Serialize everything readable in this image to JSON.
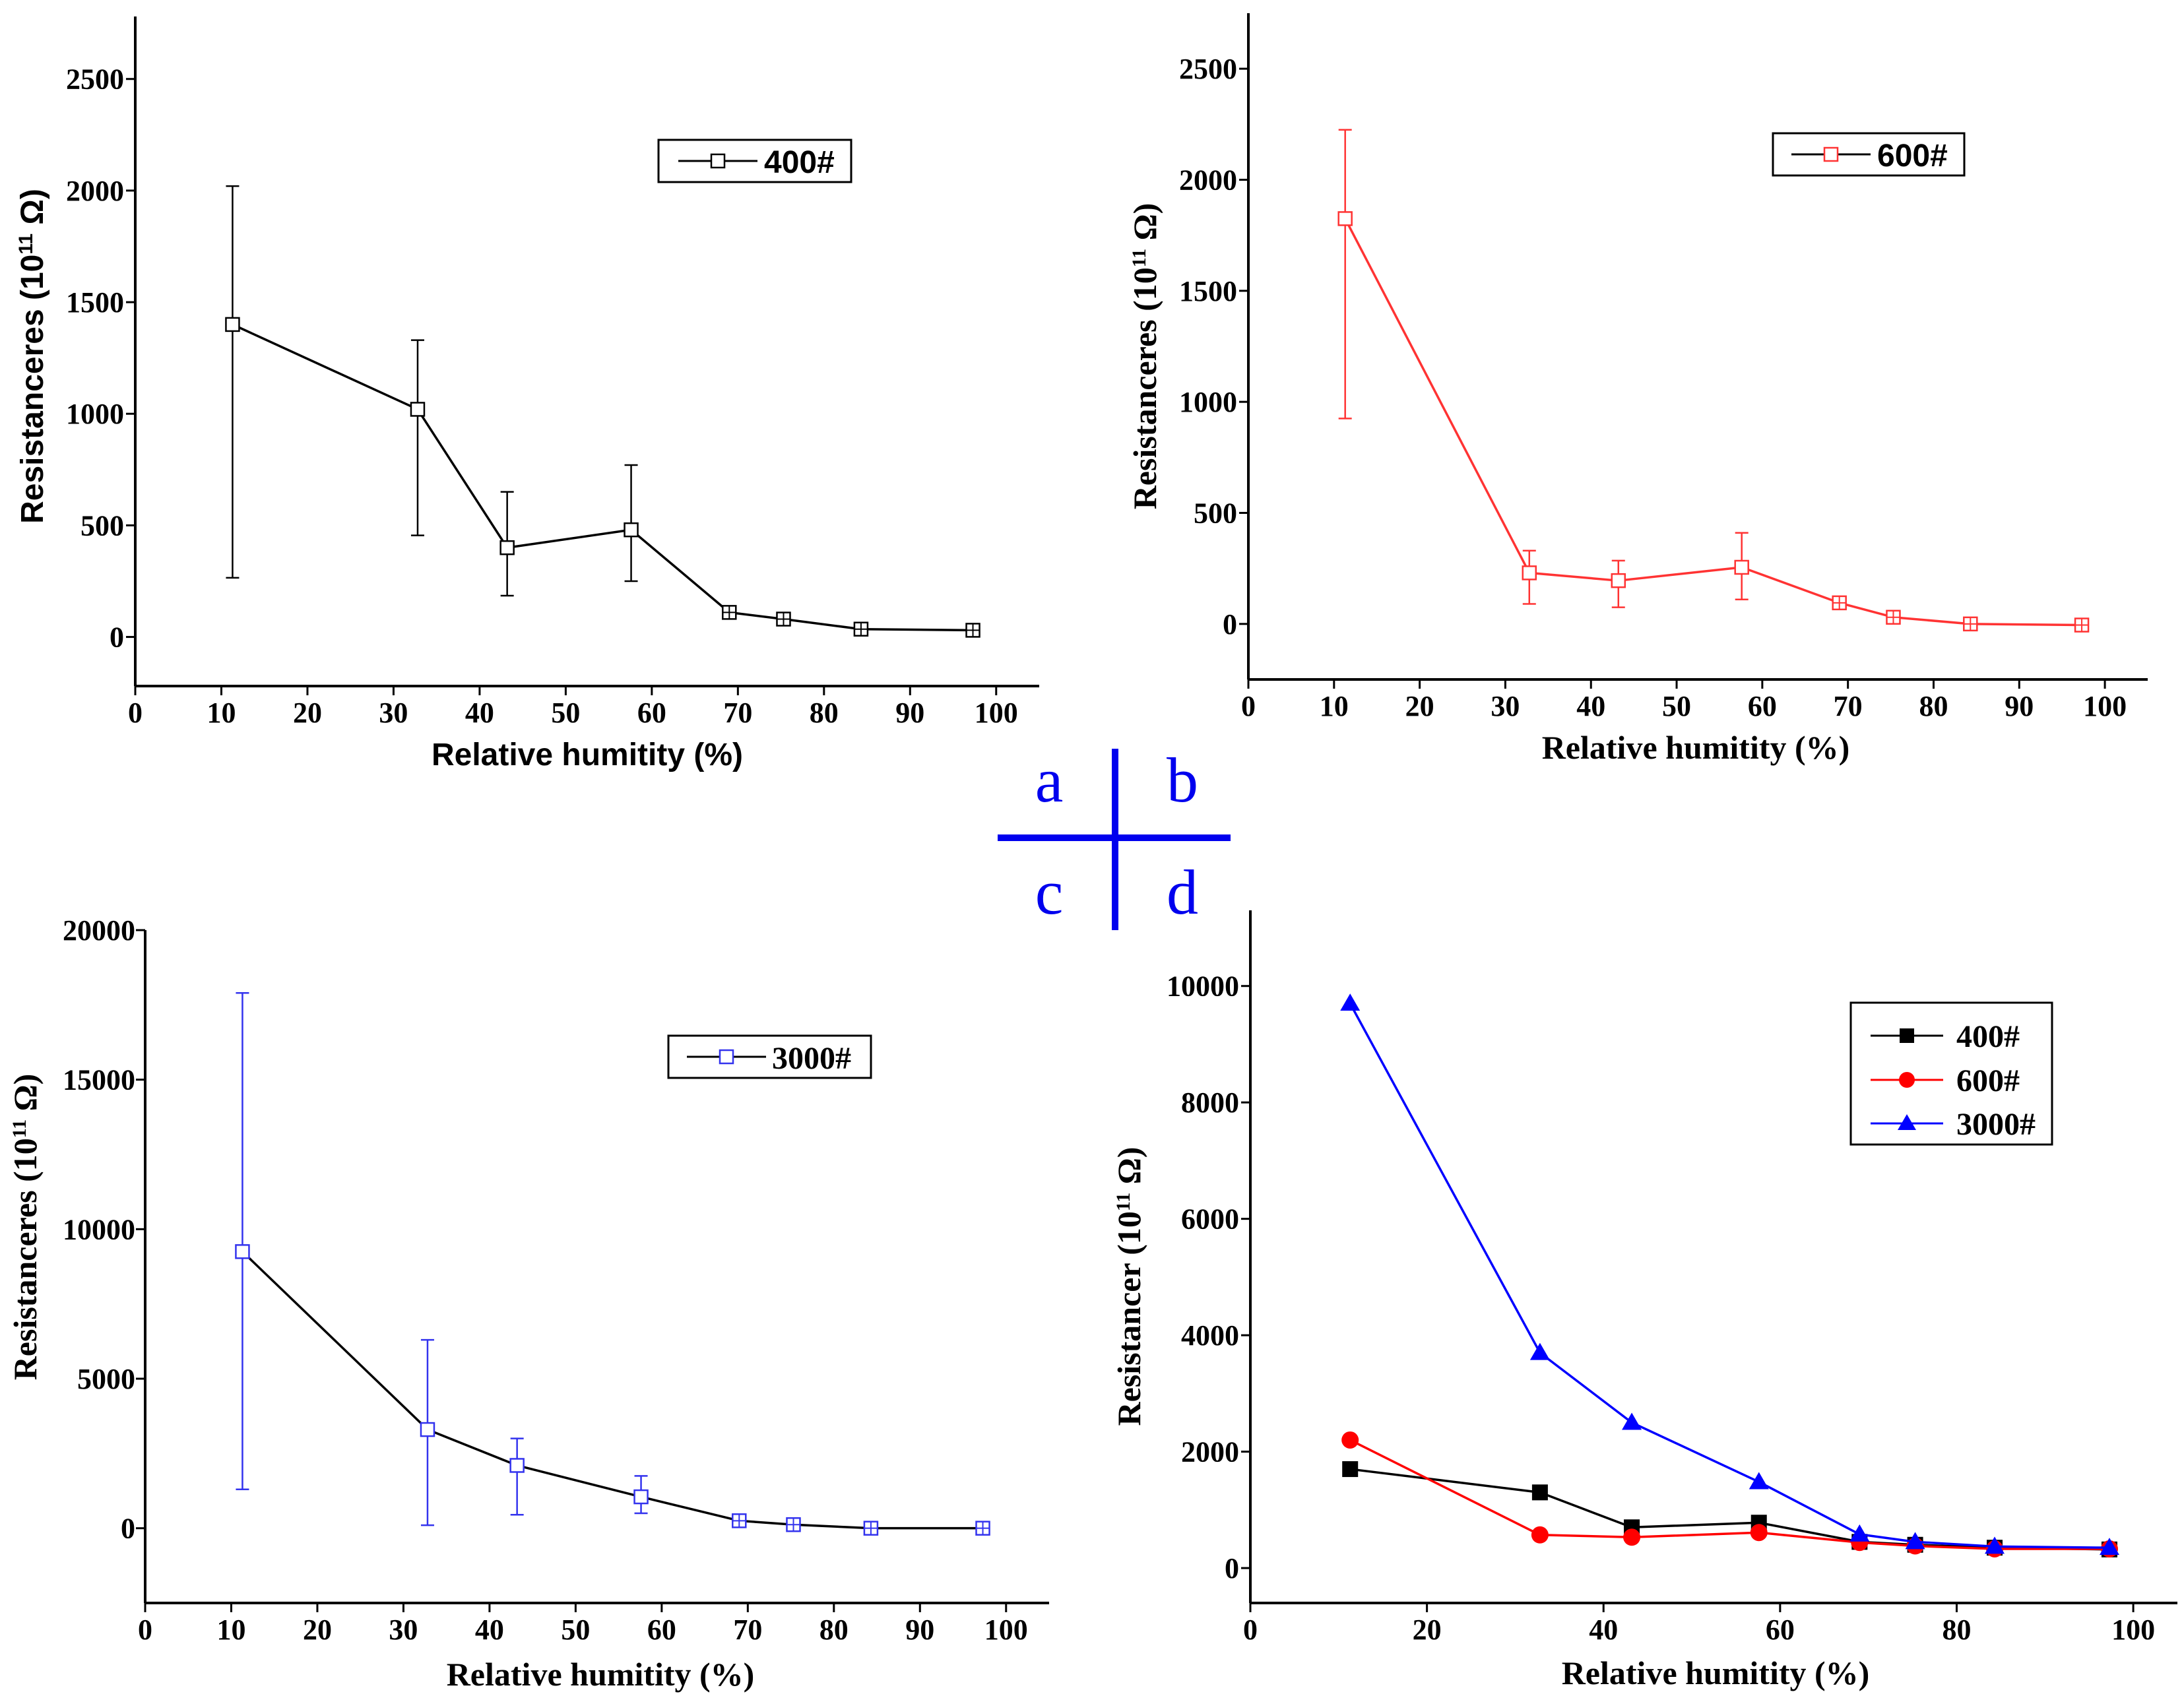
{
  "chart_data": [
    {
      "panel": "a",
      "type": "line",
      "title": "",
      "xlabel": "Relative humitity (%)",
      "ylabel": "Resistanceres (10",
      "ylabel_sup": "11",
      "ylabel_unit": " Ω)",
      "xlim": [
        0,
        105
      ],
      "ylim": [
        -220,
        2780
      ],
      "xticks": [
        0,
        10,
        20,
        30,
        40,
        50,
        60,
        70,
        80,
        90,
        100
      ],
      "yticks": [
        0,
        500,
        1000,
        1500,
        2000,
        2500
      ],
      "legend_position": "top-right",
      "series": [
        {
          "name": "400#",
          "color": "#000000",
          "marker": "open-square",
          "x": [
            11.3,
            32.8,
            43.2,
            57.6,
            69,
            75.3,
            84.3,
            97.3
          ],
          "y": [
            1400,
            1020,
            400,
            480,
            110,
            80,
            35,
            30
          ],
          "err_low": [
            265,
            455,
            185,
            250,
            110,
            80,
            35,
            30
          ],
          "err_high": [
            2020,
            1330,
            650,
            770,
            110,
            80,
            35,
            30
          ]
        }
      ]
    },
    {
      "panel": "b",
      "type": "line",
      "title": "",
      "xlabel": "Relative humitity (%)",
      "ylabel": "Resistanceres (10",
      "ylabel_sup": "11",
      "ylabel_unit": " Ω)",
      "xlim": [
        0,
        105
      ],
      "ylim": [
        -250,
        2750
      ],
      "xticks": [
        0,
        10,
        20,
        30,
        40,
        50,
        60,
        70,
        80,
        90,
        100
      ],
      "yticks": [
        0,
        500,
        1000,
        1500,
        2000,
        2500
      ],
      "legend_position": "top-right",
      "series": [
        {
          "name": "600#",
          "color": "#ff3333",
          "marker": "open-square",
          "x": [
            11.3,
            32.8,
            43.2,
            57.6,
            69,
            75.3,
            84.3,
            97.3
          ],
          "y": [
            1825,
            230,
            195,
            255,
            95,
            30,
            0,
            -5
          ],
          "err_low": [
            925,
            90,
            75,
            110,
            75,
            30,
            0,
            -5
          ],
          "err_high": [
            2225,
            330,
            285,
            410,
            120,
            30,
            0,
            -5
          ]
        }
      ]
    },
    {
      "panel": "c",
      "type": "line",
      "title": "",
      "xlabel": "Relative humitity (%)",
      "ylabel": "Resistanceres (10",
      "ylabel_sup": "11",
      "ylabel_unit": " Ω)",
      "xlim": [
        0,
        105
      ],
      "ylim": [
        -2500,
        20000
      ],
      "xticks": [
        0,
        10,
        20,
        30,
        40,
        50,
        60,
        70,
        80,
        90,
        100
      ],
      "yticks": [
        0,
        5000,
        10000,
        15000,
        20000
      ],
      "legend_position": "top-right",
      "series": [
        {
          "name": "3000#",
          "color": "#3333ee",
          "line_color": "#000000",
          "marker": "open-square",
          "x": [
            11.3,
            32.8,
            43.2,
            57.6,
            69,
            75.3,
            84.3,
            97.3
          ],
          "y": [
            9250,
            3300,
            2100,
            1050,
            250,
            120,
            0,
            0
          ],
          "err_low": [
            1300,
            100,
            450,
            500,
            250,
            120,
            0,
            0
          ],
          "err_high": [
            17900,
            6300,
            3000,
            1750,
            250,
            120,
            0,
            0
          ]
        }
      ]
    },
    {
      "panel": "d",
      "type": "line",
      "title": "",
      "xlabel": "Relative humitity (%)",
      "ylabel": "Resistancer (10",
      "ylabel_sup": "11",
      "ylabel_unit": " Ω)",
      "xlim": [
        0,
        105
      ],
      "ylim": [
        -600,
        11300
      ],
      "xticks": [
        0,
        20,
        40,
        60,
        80,
        100
      ],
      "yticks": [
        0,
        2000,
        4000,
        6000,
        8000,
        10000
      ],
      "legend_position": "top-right",
      "series": [
        {
          "name": "400#",
          "color": "#000000",
          "marker": "filled-square",
          "x": [
            11.3,
            32.8,
            43.2,
            57.6,
            69,
            75.3,
            84.3,
            97.3
          ],
          "y": [
            1700,
            1300,
            700,
            780,
            450,
            400,
            350,
            320
          ]
        },
        {
          "name": "600#",
          "color": "#ff0000",
          "marker": "filled-circle",
          "x": [
            11.3,
            32.8,
            43.2,
            57.6,
            69,
            75.3,
            84.3,
            97.3
          ],
          "y": [
            2200,
            570,
            530,
            610,
            440,
            380,
            330,
            330
          ]
        },
        {
          "name": "3000#",
          "color": "#0000ff",
          "marker": "filled-triangle",
          "x": [
            11.3,
            32.8,
            43.2,
            57.6,
            69,
            75.3,
            84.3,
            97.3
          ],
          "y": [
            9700,
            3700,
            2500,
            1480,
            580,
            450,
            370,
            350
          ]
        }
      ]
    }
  ],
  "panel_labels": [
    "a",
    "b",
    "c",
    "d"
  ],
  "panel_label_color": "#0000ee"
}
